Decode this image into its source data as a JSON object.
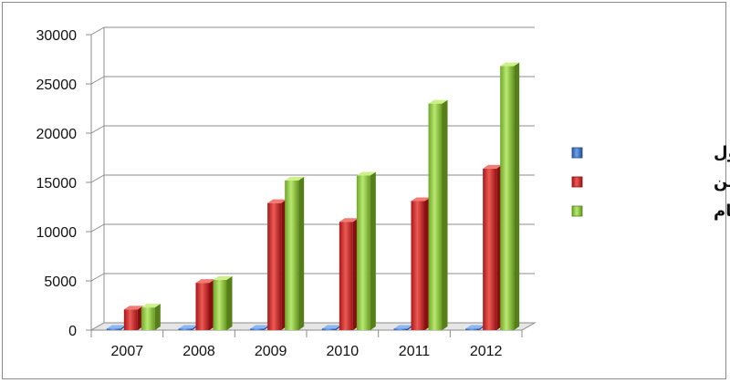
{
  "chart_data": {
    "type": "bar",
    "title": "",
    "xlabel": "",
    "ylabel": "",
    "categories": [
      "2007",
      "2008",
      "2009",
      "2010",
      "2011",
      "2012"
    ],
    "series": [
      {
        "name": "عدد الدول",
        "values": [
          50,
          50,
          50,
          50,
          50,
          50
        ],
        "color": "#3a6fc4"
      },
      {
        "name": "عدد المتكفلين",
        "values": [
          2100,
          4800,
          12900,
          11000,
          13100,
          16400
        ],
        "color": "#c8282a"
      },
      {
        "name": "عدد الايتام",
        "values": [
          2300,
          5100,
          15200,
          15700,
          23000,
          26800
        ],
        "color": "#8ec63f"
      }
    ],
    "ylim": [
      0,
      30000
    ],
    "yticks": [
      "0",
      "5000",
      "10000",
      "15000",
      "20000",
      "25000",
      "30000"
    ],
    "grid": true,
    "legend_position": "right",
    "style": "3d-columns"
  }
}
